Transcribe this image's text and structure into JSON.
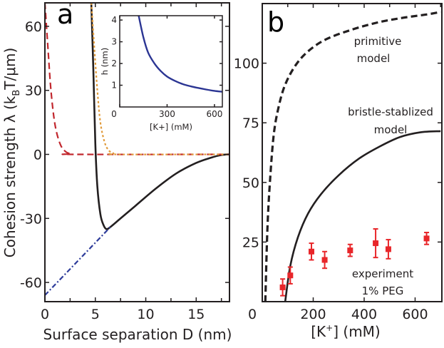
{
  "panels": {
    "a": {
      "label": "a"
    },
    "b": {
      "label": "b"
    }
  },
  "chart_data": [
    {
      "id": "panel-a",
      "type": "line",
      "panel_label": "a",
      "title": "",
      "xlabel": "Surface separation D (nm)",
      "ylabel": "Cohesion strength λ (kBT/μm)",
      "ylabel_parts": {
        "prefix": "Cohesion strength  λ (k",
        "sub": "B",
        "suffix": "T/μm)"
      },
      "xlim": [
        0,
        18.3
      ],
      "ylim": [
        -69,
        71
      ],
      "xticks": [
        0,
        5,
        10,
        15
      ],
      "xtick_labels": [
        "0",
        "5",
        "10",
        "15"
      ],
      "yticks": [
        60,
        30,
        0,
        -30,
        -60
      ],
      "ytick_labels": [
        "60",
        "30",
        "0",
        "-30",
        "-60"
      ],
      "grid": false,
      "legend": null,
      "series": [
        {
          "name": "total (black solid)",
          "color": "#231f20",
          "style": "solid",
          "x": [
            4.6,
            4.8,
            5.0,
            5.2,
            5.5,
            5.8,
            6.1,
            6.5,
            7.5,
            9,
            11,
            13,
            15,
            16.5,
            17.5,
            18.3
          ],
          "y": [
            71,
            40,
            5,
            -15,
            -28,
            -33,
            -35,
            -34,
            -30,
            -24,
            -16,
            -9,
            -4,
            -1.5,
            -0.3,
            0
          ]
        },
        {
          "name": "red dashed",
          "color": "#c1272d",
          "style": "dashed",
          "x": [
            0,
            0.3,
            0.6,
            1.0,
            1.5,
            2.0,
            2.5,
            3.0,
            18.3
          ],
          "y": [
            71,
            50,
            30,
            14,
            5,
            1.5,
            0.3,
            0,
            0
          ]
        },
        {
          "name": "orange dotted",
          "color": "#e09a3a",
          "style": "dotted",
          "x": [
            4.6,
            4.9,
            5.2,
            5.5,
            5.9,
            6.3,
            6.8,
            7.2,
            18.3
          ],
          "y": [
            71,
            50,
            30,
            15,
            6,
            2,
            0.5,
            0,
            0
          ]
        },
        {
          "name": "blue dash-dot",
          "color": "#2e3c9a",
          "style": "dashdot",
          "x": [
            0,
            6.5
          ],
          "y": [
            -66,
            -34
          ]
        }
      ],
      "inset": {
        "type": "line",
        "xlabel": "[K+] (mM)",
        "ylabel": "h (nm)",
        "xlim": [
          0,
          650
        ],
        "ylim": [
          0,
          4.2
        ],
        "xticks": [
          0,
          300,
          600
        ],
        "xtick_labels": [
          "0",
          "300",
          "600"
        ],
        "yticks": [
          1,
          2,
          3,
          4
        ],
        "ytick_labels": [
          "1",
          "2",
          "3",
          "4"
        ],
        "series": [
          {
            "name": "h vs [K+]",
            "color": "#2b3593",
            "x": [
              120,
              150,
              180,
              220,
              260,
              300,
              350,
              400,
              450,
              500,
              550,
              600,
              650
            ],
            "y": [
              4.2,
              3.2,
              2.5,
              2.0,
              1.65,
              1.4,
              1.2,
              1.05,
              0.95,
              0.87,
              0.8,
              0.74,
              0.7
            ]
          }
        ]
      }
    },
    {
      "id": "panel-b",
      "type": "line",
      "panel_label": "b",
      "title": "",
      "xlabel": "[K+] (mM)",
      "xlabel_parts": {
        "prefix": "[K",
        "sup": "+",
        "suffix": "] (mM)"
      },
      "ylabel": "",
      "xlim": [
        0,
        705
      ],
      "ylim": [
        0,
        125
      ],
      "xticks": [
        0,
        200,
        400,
        600
      ],
      "xtick_labels": [
        "0",
        "200",
        "400",
        "600"
      ],
      "yticks": [
        25,
        50,
        75,
        100
      ],
      "ytick_labels": [
        "25",
        "50",
        "75",
        "100"
      ],
      "grid": false,
      "annotations": [
        {
          "text_lines": [
            "primitive",
            "model"
          ]
        },
        {
          "text_lines": [
            "bristle-stablized",
            "model"
          ]
        },
        {
          "text_lines": [
            "experiment",
            "1% PEG"
          ]
        }
      ],
      "series": [
        {
          "name": "primitive model",
          "color": "#231f20",
          "style": "dashed",
          "x": [
            12,
            20,
            30,
            45,
            65,
            90,
            130,
            180,
            250,
            350,
            450,
            550,
            650,
            700
          ],
          "y": [
            0,
            30,
            50,
            70,
            82,
            91,
            99,
            105,
            110,
            114,
            117,
            119,
            120.5,
            121.5
          ]
        },
        {
          "name": "bristle-stablized model",
          "color": "#231f20",
          "style": "solid",
          "x": [
            90,
            110,
            140,
            180,
            230,
            300,
            380,
            460,
            540,
            620,
            700
          ],
          "y": [
            0,
            15,
            27,
            37,
            45,
            53,
            60,
            65,
            69,
            71,
            71.5
          ]
        },
        {
          "name": "experiment 1% PEG",
          "color": "#e8262a",
          "style": "points",
          "x": [
            80,
            110,
            193,
            245,
            345,
            445,
            495,
            645
          ],
          "y": [
            6,
            11,
            21,
            17.5,
            21.5,
            24.5,
            22,
            26.5
          ],
          "err": [
            3.5,
            3.5,
            3.5,
            3.5,
            2.5,
            6,
            4,
            2.5
          ]
        }
      ]
    }
  ]
}
